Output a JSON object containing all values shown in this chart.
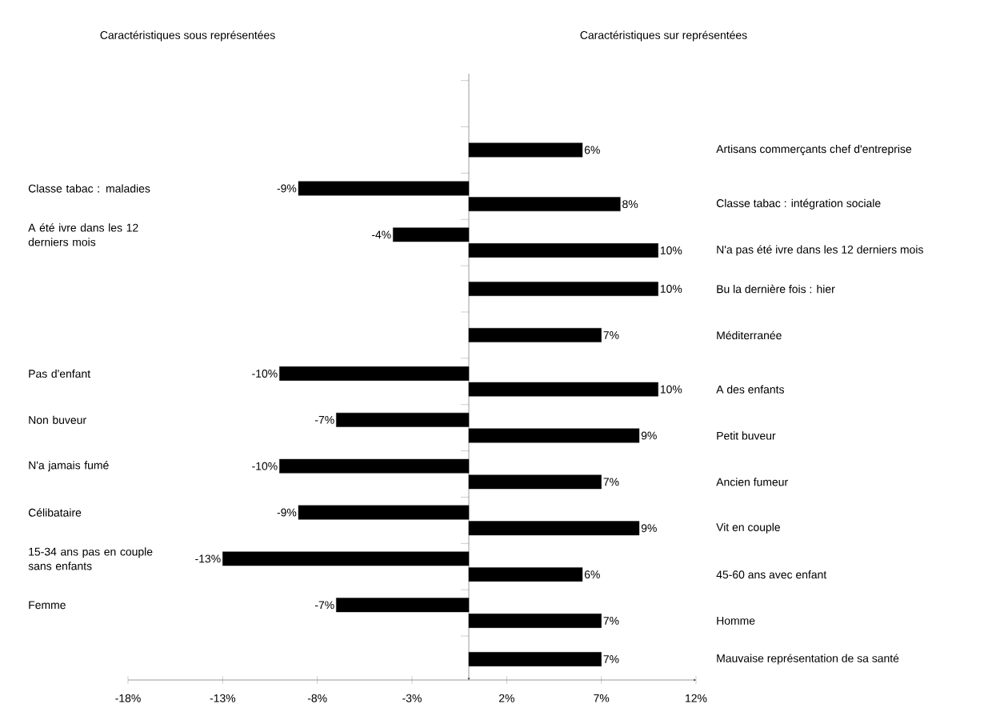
{
  "chart_data": [
    {
      "type": "bar",
      "orientation": "horizontal",
      "categories": [
        null,
        "Classe tabac : maladies",
        "A été ivre dans les 12 derniers mois",
        null,
        null,
        "Pas d'enfant",
        "Non buveur",
        "N'a jamais fumé",
        "Célibataire",
        "15-34 ans pas en couple sans enfants",
        "Femme",
        null
      ],
      "values": [
        null,
        -9,
        -4,
        null,
        null,
        -10,
        -7,
        -10,
        -9,
        -13,
        -7,
        null
      ],
      "value_labels": [
        null,
        "-9%",
        "-4%",
        null,
        null,
        "-10%",
        "-7%",
        "-10%",
        "-9%",
        "-13%",
        "-7%",
        null
      ],
      "color": "#000000",
      "xlim": [
        -18,
        12
      ],
      "xticks": [
        {
          "value": -18,
          "label": "-18%"
        },
        {
          "value": -13,
          "label": "-13%"
        },
        {
          "value": -8,
          "label": "-8%"
        },
        {
          "value": -3,
          "label": "-3%"
        },
        {
          "value": 2,
          "label": "2%"
        },
        {
          "value": 7,
          "label": "7%"
        },
        {
          "value": 12,
          "label": "12%"
        }
      ],
      "annotations": [
        "Caractéristiques sous représentées"
      ],
      "grid": false
    },
    {
      "type": "bar",
      "orientation": "horizontal",
      "categories": [
        "Artisans commerçants chef d'entreprise",
        "Classe tabac : intégration sociale",
        "N'a pas été ivre dans les 12 derniers mois",
        "Bu la dernière fois : hier",
        "Méditerranée",
        "A des enfants",
        "Petit buveur",
        "Ancien fumeur",
        "Vit en couple",
        "45-60 ans avec enfant",
        "Homme",
        "Mauvaise représentation de sa santé"
      ],
      "values": [
        6,
        8,
        10,
        10,
        7,
        10,
        9,
        7,
        9,
        6,
        7,
        7
      ],
      "value_labels": [
        "6%",
        "8%",
        "10%",
        "10%",
        "7%",
        "10%",
        "9%",
        "7%",
        "9%",
        "6%",
        "7%",
        "7%"
      ],
      "color": "#000000",
      "xlim": [
        -18,
        12
      ],
      "tick_labels": "y",
      "annotations": [
        "Caractéristiques sur représentées"
      ],
      "grid": false
    }
  ]
}
